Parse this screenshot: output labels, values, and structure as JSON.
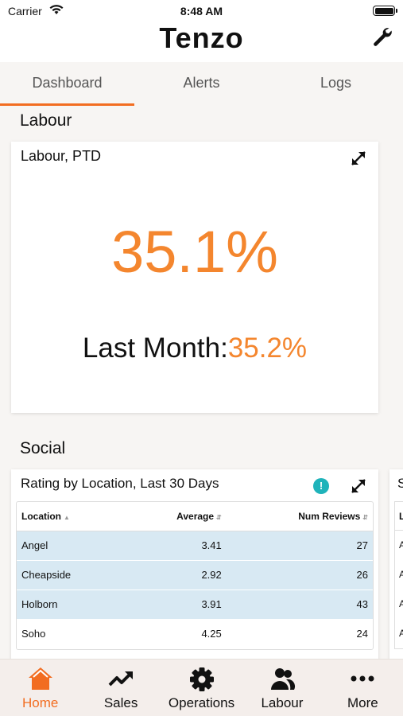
{
  "status": {
    "carrier": "Carrier",
    "time": "8:48 AM"
  },
  "header": {
    "logo": "Tenzo",
    "settings_icon": "wrench-icon"
  },
  "tabs": [
    {
      "label": "Dashboard",
      "active": true
    },
    {
      "label": "Alerts",
      "active": false
    },
    {
      "label": "Logs",
      "active": false
    }
  ],
  "labour": {
    "section_title": "Labour",
    "card_title": "Labour, PTD",
    "value": "35.1%",
    "last_month_label": "Last Month:",
    "last_month_value": "35.2%"
  },
  "social": {
    "section_title": "Social",
    "card_title": "Rating by Location, Last 30 Days",
    "info_icon": "!",
    "columns": [
      "Location",
      "Average",
      "Num Reviews"
    ],
    "rows": [
      {
        "location": "Angel",
        "average": "3.41",
        "reviews": "27"
      },
      {
        "location": "Cheapside",
        "average": "2.92",
        "reviews": "26"
      },
      {
        "location": "Holborn",
        "average": "3.91",
        "reviews": "43"
      },
      {
        "location": "Soho",
        "average": "4.25",
        "reviews": "24"
      }
    ],
    "peek_card": {
      "title_fragment": "S",
      "rows": [
        "L",
        "A",
        "A",
        "A",
        "A"
      ]
    }
  },
  "bottom_nav": [
    {
      "label": "Home",
      "icon": "home-icon",
      "active": true
    },
    {
      "label": "Sales",
      "icon": "trend-up-icon",
      "active": false
    },
    {
      "label": "Operations",
      "icon": "gear-icon",
      "active": false
    },
    {
      "label": "Labour",
      "icon": "people-icon",
      "active": false
    },
    {
      "label": "More",
      "icon": "more-dots-icon",
      "active": false
    }
  ],
  "colors": {
    "accent": "#f26d21",
    "value_orange": "#f4862e",
    "highlight_row": "#d8e9f3",
    "info_teal": "#1fb3ba"
  }
}
